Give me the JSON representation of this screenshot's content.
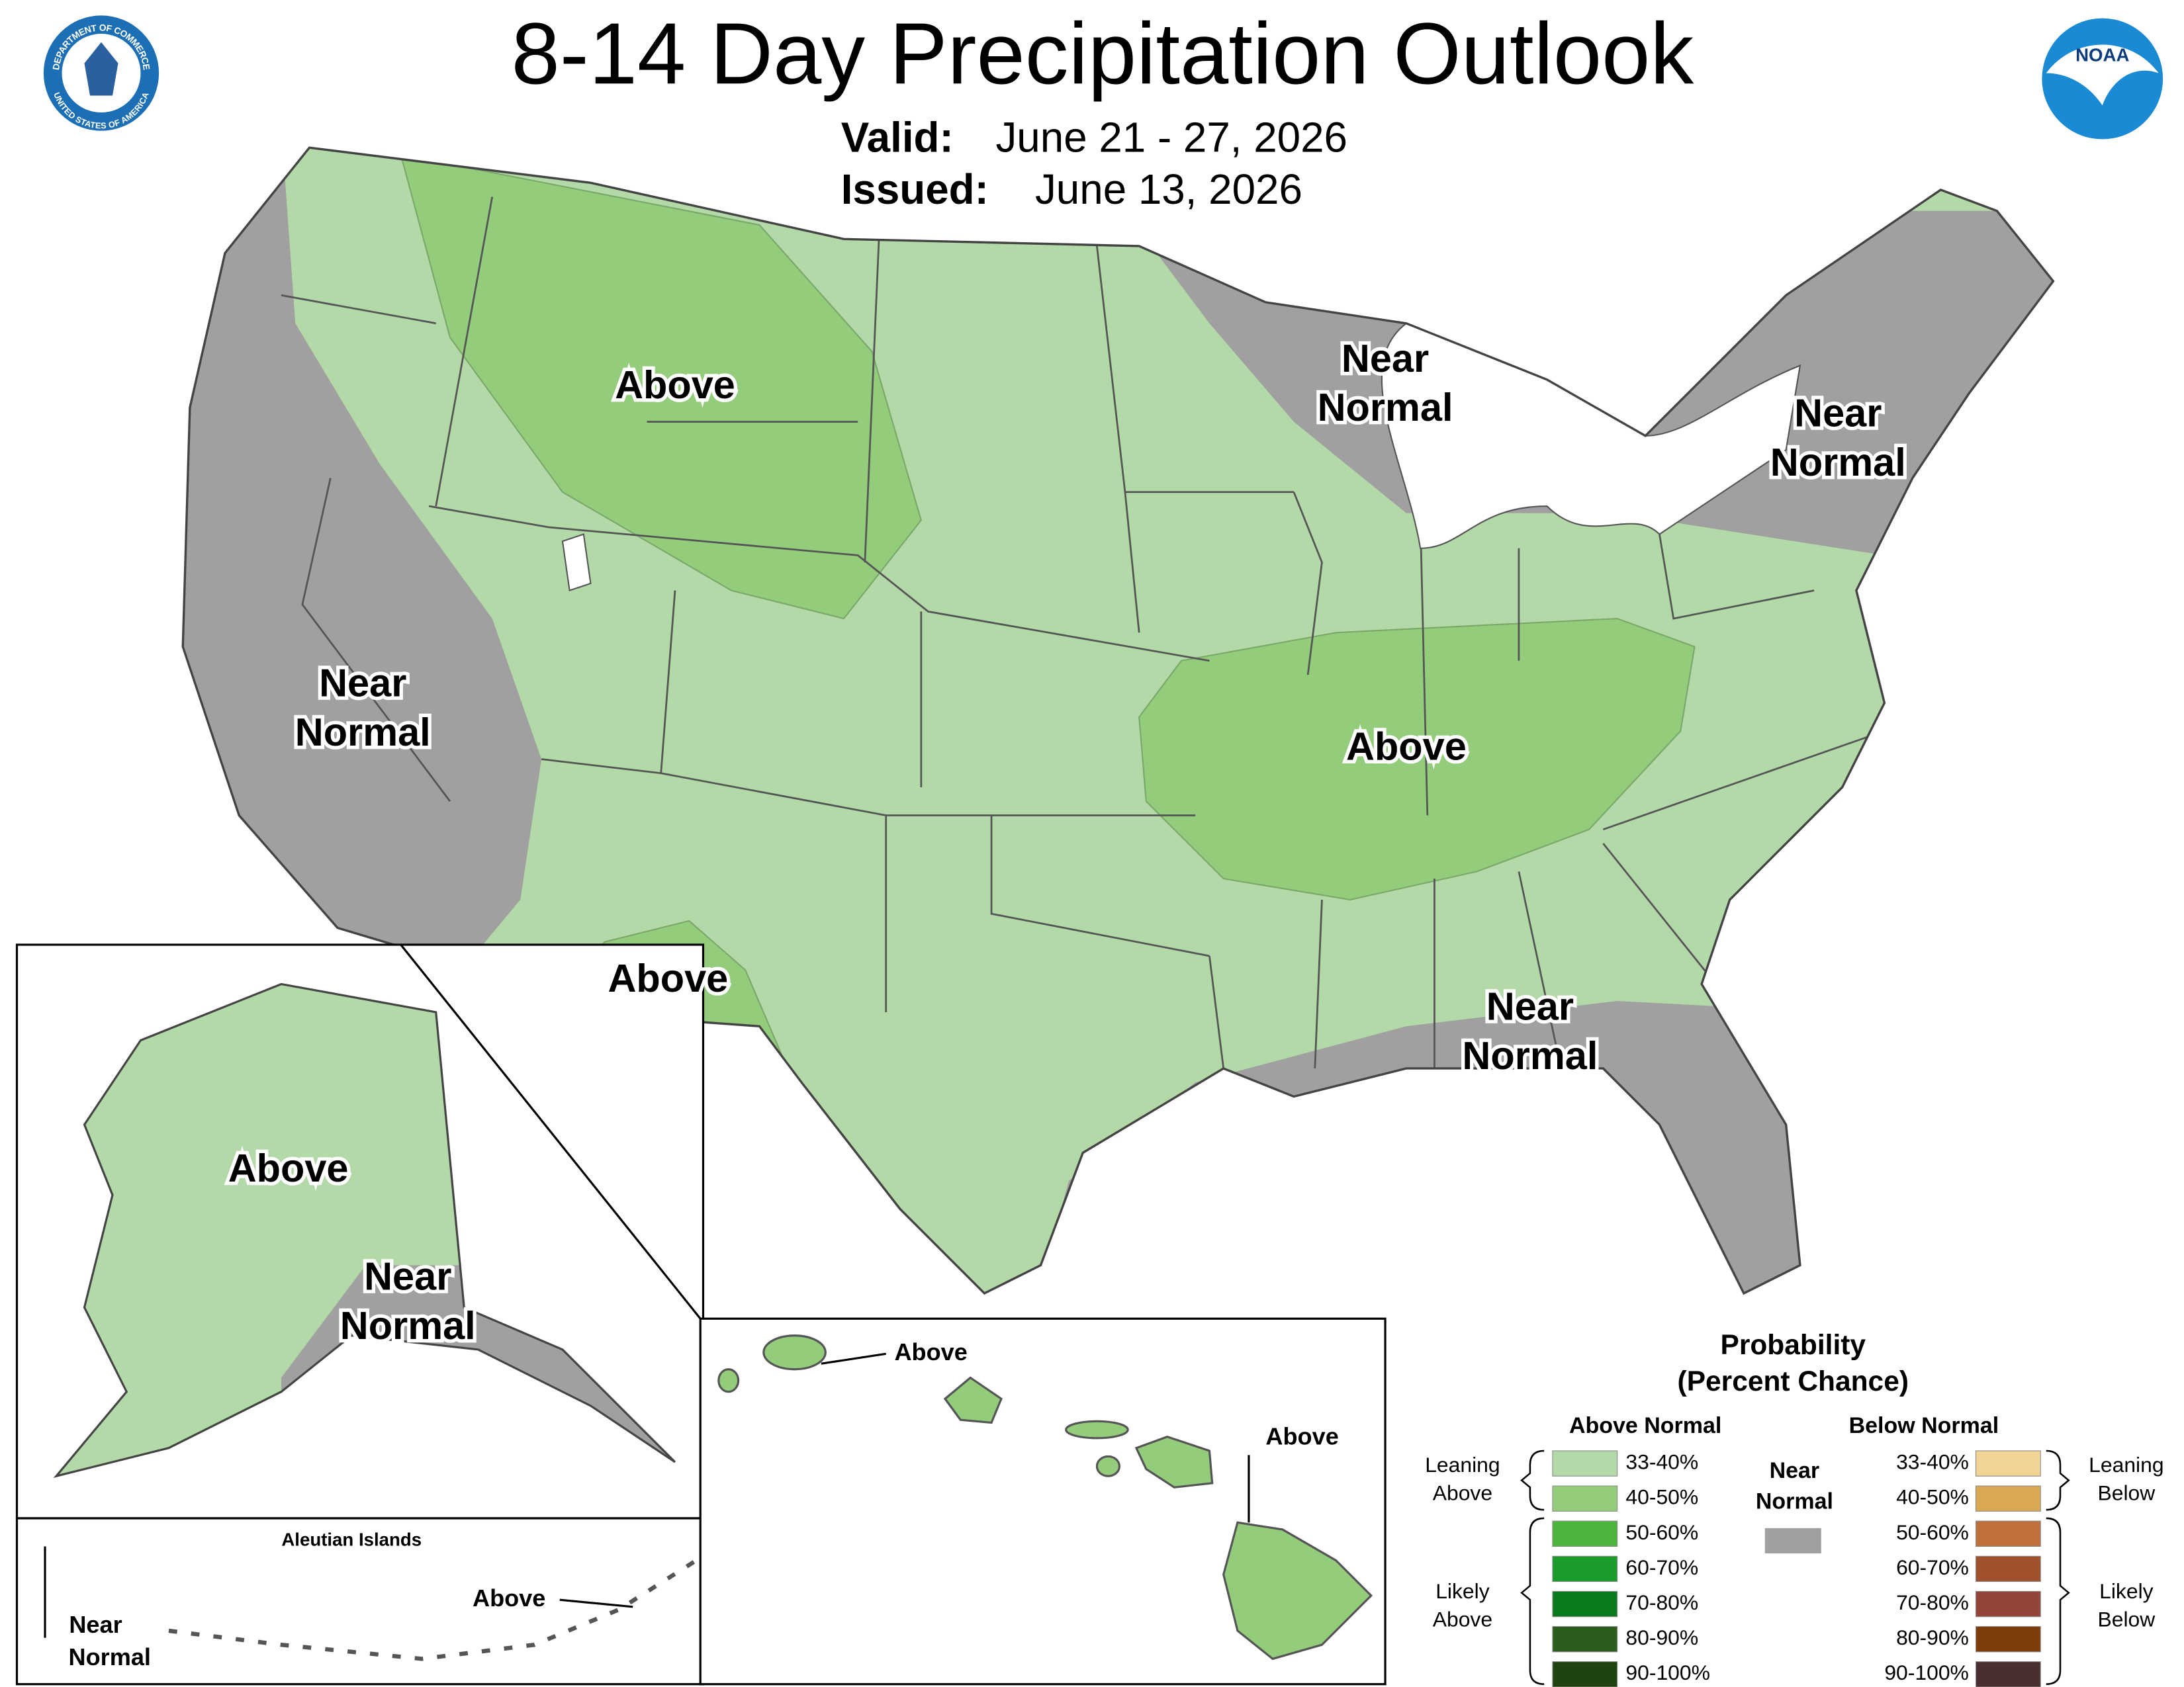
{
  "header": {
    "title": "8-14 Day Precipitation Outlook",
    "valid_label": "Valid:",
    "valid": "June 21 - 27, 2026",
    "issued_label": "Issued:",
    "issued": "June 13, 2026"
  },
  "logos": {
    "commerce_top": "DEPARTMENT OF COMMERCE",
    "commerce_bottom": "UNITED STATES OF AMERICA",
    "noaa": "NOAA"
  },
  "map_labels": [
    {
      "lines": [
        "Above"
      ]
    },
    {
      "lines": [
        "Near",
        "Normal"
      ]
    },
    {
      "lines": [
        "Above"
      ]
    },
    {
      "lines": [
        "Above"
      ]
    },
    {
      "lines": [
        "Near",
        "Normal"
      ]
    },
    {
      "lines": [
        "Near",
        "Normal"
      ]
    },
    {
      "lines": [
        "Near",
        "Normal"
      ]
    },
    {
      "lines": [
        "Above"
      ]
    },
    {
      "lines": [
        "Near",
        "Normal"
      ]
    }
  ],
  "hawaii_labels": [
    "Above",
    "Above"
  ],
  "aleutian": {
    "title": "Aleutian Islands",
    "near": [
      "Near",
      "Normal"
    ],
    "above": "Above"
  },
  "legend": {
    "title": [
      "Probability",
      "(Percent Chance)"
    ],
    "above_header": "Above Normal",
    "below_header": "Below Normal",
    "near": [
      "Near",
      "Normal"
    ],
    "near_color": "#a0a0a0",
    "leaning_above": [
      "Leaning",
      "Above"
    ],
    "likely_above": [
      "Likely",
      "Above"
    ],
    "leaning_below": [
      "Leaning",
      "Below"
    ],
    "likely_below": [
      "Likely",
      "Below"
    ],
    "above": [
      {
        "label": "33-40%",
        "color": "#b3d9a8"
      },
      {
        "label": "40-50%",
        "color": "#93cd7c"
      },
      {
        "label": "50-60%",
        "color": "#4cb53b"
      },
      {
        "label": "60-70%",
        "color": "#1a9b2a"
      },
      {
        "label": "70-80%",
        "color": "#0b7a1e"
      },
      {
        "label": "80-90%",
        "color": "#2b5e1c"
      },
      {
        "label": "90-100%",
        "color": "#1f4410"
      }
    ],
    "below": [
      {
        "label": "33-40%",
        "color": "#f2d594"
      },
      {
        "label": "40-50%",
        "color": "#d9a853"
      },
      {
        "label": "50-60%",
        "color": "#c0703a"
      },
      {
        "label": "60-70%",
        "color": "#a0522d"
      },
      {
        "label": "70-80%",
        "color": "#944539"
      },
      {
        "label": "80-90%",
        "color": "#7d3d0a"
      },
      {
        "label": "90-100%",
        "color": "#4a2f30"
      }
    ]
  }
}
